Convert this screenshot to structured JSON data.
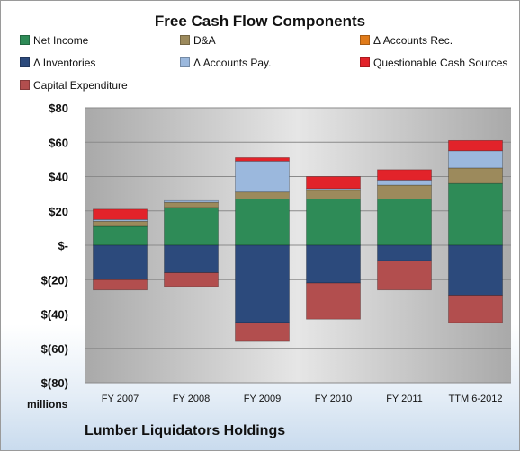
{
  "chart_data": {
    "type": "bar",
    "stacked": true,
    "title": "Free Cash Flow Components",
    "subtitle": "Lumber Liquidators Holdings",
    "units_label": "millions",
    "categories": [
      "FY 2007",
      "FY 2008",
      "FY 2009",
      "FY 2010",
      "FY 2011",
      "TTM 6-2012"
    ],
    "ylim": [
      -80,
      80
    ],
    "yticks": [
      80,
      60,
      40,
      20,
      0,
      -20,
      -40,
      -60,
      -80
    ],
    "ytick_labels": [
      "$80",
      "$60",
      "$40",
      "$20",
      "$-",
      "$(20)",
      "$(40)",
      "$(60)",
      "$(80)"
    ],
    "grid": true,
    "legend_position": "top",
    "series": [
      {
        "name": "Net Income",
        "color": "#2e8b57",
        "values": [
          11,
          22,
          27,
          27,
          27,
          36
        ]
      },
      {
        "name": "D&A",
        "color": "#9c8a5c",
        "values": [
          3,
          3,
          4,
          5,
          8,
          9
        ]
      },
      {
        "name": "Δ Accounts Rec.",
        "color": "#e07b1a",
        "values": [
          0,
          0,
          0,
          0,
          0,
          0
        ]
      },
      {
        "name": "Δ Inventories",
        "color": "#2c4a7c",
        "values": [
          -20,
          -16,
          -45,
          -22,
          -9,
          -29
        ]
      },
      {
        "name": "Δ Accounts Pay.",
        "color": "#9bb8dd",
        "values": [
          1,
          1,
          18,
          1,
          3,
          10
        ]
      },
      {
        "name": "Questionable Cash Sources",
        "color": "#e2232a",
        "values": [
          6,
          0,
          2,
          7,
          6,
          6
        ]
      },
      {
        "name": "Capital Expenditure",
        "color": "#b24e4e",
        "values": [
          -6,
          -8,
          -11,
          -21,
          -17,
          -16
        ]
      }
    ]
  }
}
